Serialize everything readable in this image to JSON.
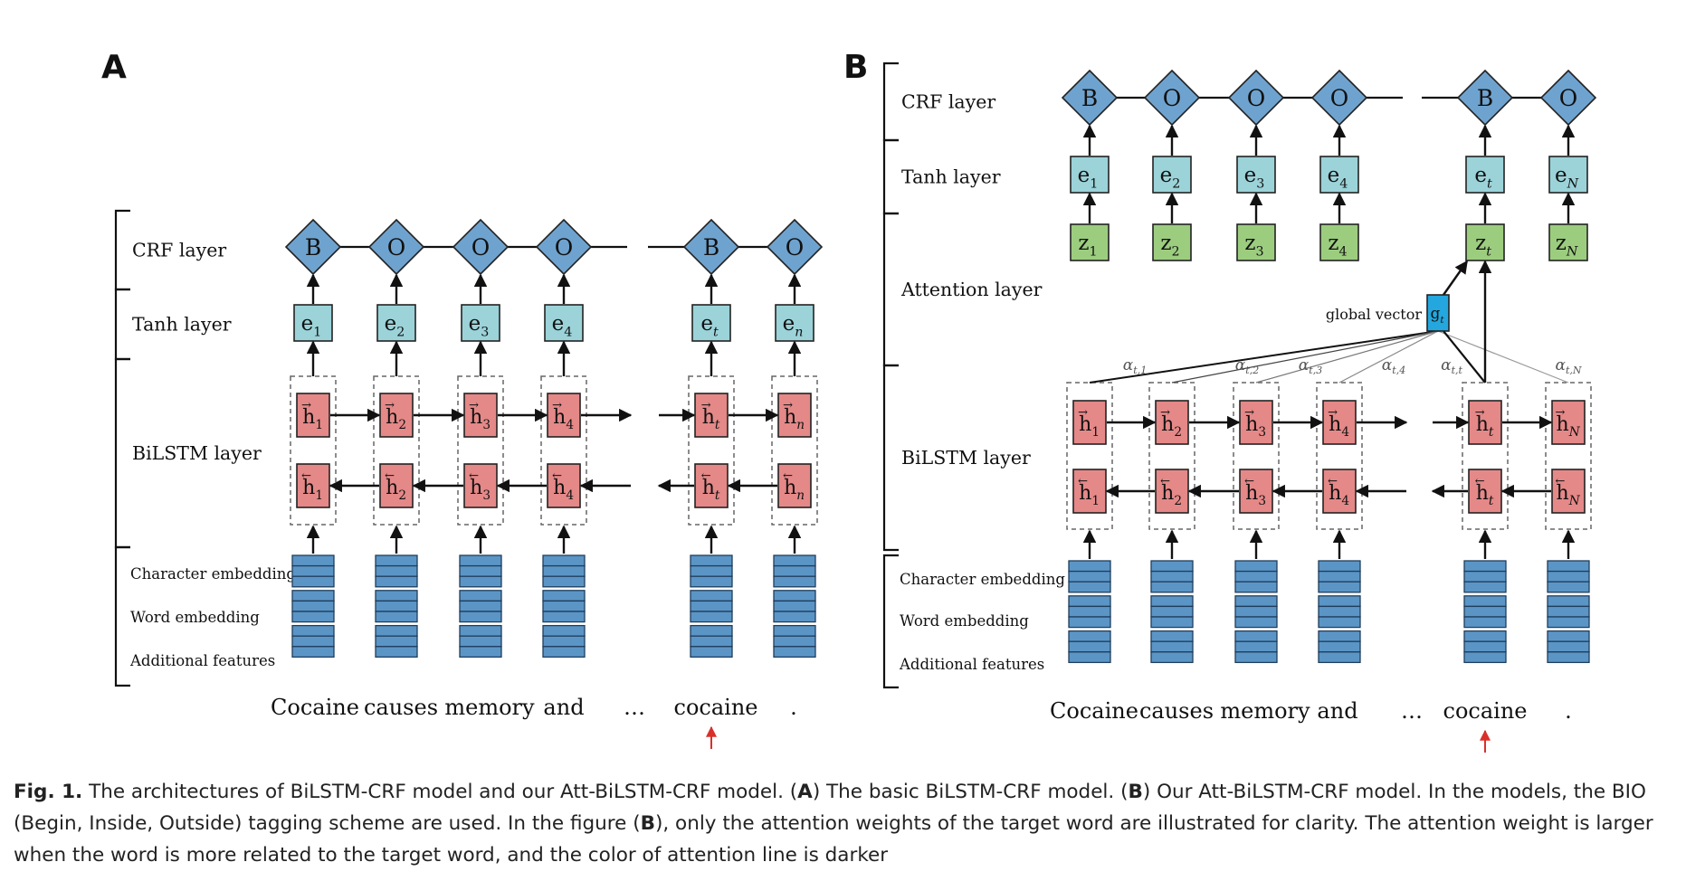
{
  "panels": [
    {
      "id": "A",
      "label": "A",
      "layers": [
        "CRF layer",
        "Tanh layer",
        "BiLSTM layer"
      ],
      "embedding_labels": [
        "Character embedding",
        "Word embedding",
        "Additional features"
      ],
      "tags": [
        "B",
        "O",
        "O",
        "O",
        "B",
        "O"
      ],
      "tanh": [
        {
          "base": "e",
          "sub": "1"
        },
        {
          "base": "e",
          "sub": "2"
        },
        {
          "base": "e",
          "sub": "3"
        },
        {
          "base": "e",
          "sub": "4"
        },
        {
          "base": "e",
          "sub": "t"
        },
        {
          "base": "e",
          "sub": "n"
        }
      ],
      "hidden_subs": [
        "1",
        "2",
        "3",
        "4",
        "t",
        "n"
      ],
      "words": [
        "Cocaine",
        "causes",
        "memory",
        "and",
        "…",
        "cocaine",
        "."
      ]
    },
    {
      "id": "B",
      "label": "B",
      "layers": [
        "CRF layer",
        "Tanh layer",
        "Attention layer",
        "BiLSTM layer"
      ],
      "embedding_labels": [
        "Character embedding",
        "Word embedding",
        "Additional features"
      ],
      "tags": [
        "B",
        "O",
        "O",
        "O",
        "B",
        "O"
      ],
      "tanh": [
        {
          "base": "e",
          "sub": "1"
        },
        {
          "base": "e",
          "sub": "2"
        },
        {
          "base": "e",
          "sub": "3"
        },
        {
          "base": "e",
          "sub": "4"
        },
        {
          "base": "e",
          "sub": "t"
        },
        {
          "base": "e",
          "sub": "N"
        }
      ],
      "attention_outputs": [
        {
          "base": "z",
          "sub": "1"
        },
        {
          "base": "z",
          "sub": "2"
        },
        {
          "base": "z",
          "sub": "3"
        },
        {
          "base": "z",
          "sub": "4"
        },
        {
          "base": "z",
          "sub": "t"
        },
        {
          "base": "z",
          "sub": "N"
        }
      ],
      "global_vector": {
        "label": "global vector",
        "base": "g",
        "sub": "t"
      },
      "alpha_labels": [
        "t,1",
        "t,2",
        "t,3",
        "t,4",
        "t,t",
        "t,N"
      ],
      "hidden_subs": [
        "1",
        "2",
        "3",
        "4",
        "t",
        "N"
      ],
      "words": [
        "Cocaine",
        "causes",
        "memory",
        "and",
        "…",
        "cocaine",
        "."
      ]
    }
  ],
  "colors": {
    "crf_diamond": "#6fa3cf",
    "tanh_box": "#9bd3d9",
    "attention_box": "#9ccd7f",
    "hidden_box": "#e58888",
    "embedding_block": "#5b95c6",
    "global_vector_box": "#23a7de",
    "target_arrow": "#d9302a"
  },
  "caption": {
    "fig_label": "Fig. 1.",
    "sentence1": " The architectures of BiLSTM-CRF model and our Att-BiLSTM-CRF model. (",
    "ref_a": "A",
    "sentence2": ") The basic BiLSTM-CRF model. (",
    "ref_b": "B",
    "sentence3": ") Our Att-BiLSTM-CRF model. In the models, the BIO (Begin, Inside, Outside) tagging scheme are used. In the figure (",
    "ref_b2": "B",
    "sentence4": "), only the attention weights of the target word are illustrated for clarity. The attention weight is larger when the word is more related to the target word, and the color of attention line is darker"
  }
}
